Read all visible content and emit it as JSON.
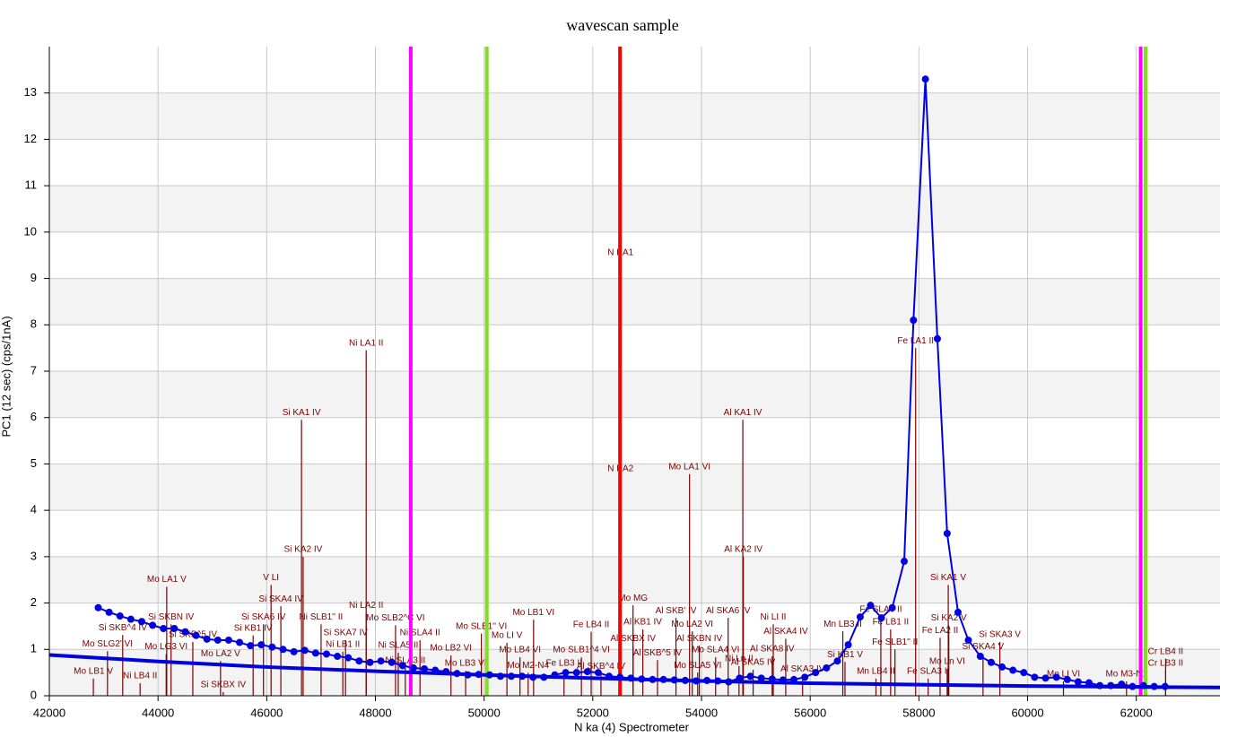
{
  "chart_data": {
    "type": "line",
    "title": "wavescan sample",
    "x_label": "N  ka (4) Spectrometer",
    "y_label": "PC1 (12 sec) (cps/1nA)",
    "xlim": [
      42000,
      63540
    ],
    "ylim": [
      0,
      14
    ],
    "xticks": [
      42000,
      44000,
      46000,
      48000,
      50000,
      52000,
      54000,
      56000,
      58000,
      60000,
      62000
    ],
    "yticks": [
      0,
      1,
      2,
      3,
      4,
      5,
      6,
      7,
      8,
      9,
      10,
      11,
      12,
      13
    ],
    "grid": true,
    "bands": true,
    "series": [
      {
        "color": "#0000e0",
        "markers": true,
        "x": [
          42900,
          43100,
          43300,
          43500,
          43700,
          43900,
          44100,
          44300,
          44500,
          44700,
          44900,
          45100,
          45300,
          45500,
          45700,
          45900,
          46100,
          46300,
          46500,
          46700,
          46900,
          47100,
          47300,
          47500,
          47700,
          47900,
          48100,
          48300,
          48500,
          48700,
          48900,
          49100,
          49300,
          49500,
          49700,
          49900,
          50100,
          50300,
          50500,
          50700,
          50900,
          51100,
          51300,
          51500,
          51700,
          51900,
          52100,
          52300,
          52500,
          52700,
          52900,
          53100,
          53300,
          53500,
          53700,
          53900,
          54100,
          54300,
          54500,
          54700,
          54900,
          55100,
          55300,
          55500,
          55700,
          55900,
          56100,
          56300,
          56500,
          56700,
          56920,
          57110,
          57310,
          57510,
          57730,
          57900,
          58120,
          58340,
          58520,
          58720,
          58910,
          59130,
          59330,
          59530,
          59730,
          59930,
          60130,
          60330,
          60530,
          60730,
          60930,
          61130,
          61330,
          61530,
          61730,
          61930,
          62130,
          62330,
          62530
        ],
        "values": [
          1.9,
          1.8,
          1.72,
          1.65,
          1.6,
          1.52,
          1.45,
          1.45,
          1.38,
          1.3,
          1.22,
          1.2,
          1.2,
          1.15,
          1.08,
          1.1,
          1.05,
          1.0,
          0.95,
          0.98,
          0.92,
          0.9,
          0.85,
          0.82,
          0.75,
          0.72,
          0.75,
          0.72,
          0.65,
          0.6,
          0.58,
          0.55,
          0.52,
          0.48,
          0.45,
          0.46,
          0.45,
          0.42,
          0.42,
          0.42,
          0.4,
          0.4,
          0.45,
          0.5,
          0.5,
          0.52,
          0.5,
          0.42,
          0.4,
          0.38,
          0.36,
          0.35,
          0.35,
          0.34,
          0.33,
          0.32,
          0.33,
          0.32,
          0.3,
          0.38,
          0.42,
          0.38,
          0.36,
          0.34,
          0.35,
          0.4,
          0.5,
          0.6,
          0.75,
          1.1,
          1.7,
          1.95,
          1.68,
          1.9,
          2.9,
          8.1,
          13.3,
          7.7,
          3.5,
          1.8,
          1.2,
          0.85,
          0.72,
          0.62,
          0.55,
          0.5,
          0.4,
          0.38,
          0.4,
          0.35,
          0.3,
          0.28,
          0.22,
          0.22,
          0.25,
          0.2,
          0.22,
          0.2,
          0.2
        ]
      },
      {
        "color": "#0000e0",
        "markers": false,
        "x": [
          42000,
          44000,
          46000,
          48000,
          50000,
          52000,
          54000,
          56000,
          58000,
          60000,
          62000,
          63540
        ],
        "values": [
          0.88,
          0.74,
          0.62,
          0.53,
          0.45,
          0.38,
          0.32,
          0.27,
          0.24,
          0.21,
          0.19,
          0.18
        ]
      }
    ],
    "markers": [
      {
        "x": 48650,
        "color": "#ff00ff"
      },
      {
        "x": 50050,
        "color": "#80e020"
      },
      {
        "x": 52500,
        "color": "#ff0000"
      },
      {
        "x": 62080,
        "color": "#ff00ff"
      },
      {
        "x": 62170,
        "color": "#80e020"
      }
    ],
    "klm_color": "#7a0000",
    "klm": [
      {
        "label": "Mo LA1 V",
        "x": 44160,
        "value": 2.35
      },
      {
        "label": "Si SKBN IV",
        "x": 44240,
        "value": 1.54
      },
      {
        "label": "Si SKB^4 IV",
        "x": 43350,
        "value": 1.31
      },
      {
        "label": "Si SKB^5 IV",
        "x": 44640,
        "value": 1.16
      },
      {
        "label": "Mo SLG2' VI",
        "x": 43070,
        "value": 0.96
      },
      {
        "label": "Mo LG3 VI",
        "x": 44150,
        "value": 0.9
      },
      {
        "label": "Si KB1 IV",
        "x": 45750,
        "value": 1.3
      },
      {
        "label": "Si SKA6 IV",
        "x": 45940,
        "value": 1.54
      },
      {
        "label": "V LI",
        "x": 46080,
        "value": 2.39
      },
      {
        "label": "Si SKA4 IV",
        "x": 46260,
        "value": 1.93
      },
      {
        "label": "Mo LB1 V",
        "x": 42810,
        "value": 0.37
      },
      {
        "label": "Ni LB4 II",
        "x": 43670,
        "value": 0.27
      },
      {
        "label": "Mo LA2 V",
        "x": 45150,
        "value": 0.75
      },
      {
        "label": "Si SKBX IV",
        "x": 45200,
        "value": 0.08
      },
      {
        "label": "Si KA1 IV",
        "x": 46640,
        "value": 5.95
      },
      {
        "label": "Si KA2 IV",
        "x": 46670,
        "value": 3.0
      },
      {
        "label": "Ni SLB1'' II",
        "x": 47000,
        "value": 1.54
      },
      {
        "label": "Si SKA7 IV",
        "x": 47450,
        "value": 1.2
      },
      {
        "label": "Ni LB1 II",
        "x": 47400,
        "value": 0.95
      },
      {
        "label": "Ni LA1 II",
        "x": 47830,
        "value": 7.45
      },
      {
        "label": "Ni LA2 II",
        "x": 47830,
        "value": 1.79
      },
      {
        "label": "Mo SLB2^C VI",
        "x": 48370,
        "value": 1.52
      },
      {
        "label": "Ni SLA4 II",
        "x": 48820,
        "value": 1.2
      },
      {
        "label": "Ni SLA5 II",
        "x": 48420,
        "value": 0.93
      },
      {
        "label": "Ni SLA3 II",
        "x": 48550,
        "value": 0.6
      },
      {
        "label": "Mo SLB1'' VI",
        "x": 49950,
        "value": 1.34
      },
      {
        "label": "Mo LB2 VI",
        "x": 49390,
        "value": 0.87
      },
      {
        "label": "Mo LB3 VI",
        "x": 49660,
        "value": 0.54
      },
      {
        "label": "Mo LI V",
        "x": 50420,
        "value": 1.14
      },
      {
        "label": "Mo LB1 VI",
        "x": 50910,
        "value": 1.64
      },
      {
        "label": "Mo LB4 VI",
        "x": 50660,
        "value": 0.83
      },
      {
        "label": "Mo M2-N4",
        "x": 50810,
        "value": 0.5
      },
      {
        "label": "Fe LB3 II",
        "x": 51470,
        "value": 0.54
      },
      {
        "label": "Fe LB4 II",
        "x": 51970,
        "value": 1.38
      },
      {
        "label": "Mo SLB1^4 VI",
        "x": 51790,
        "value": 0.83
      },
      {
        "label": "Al SKB^4 IV",
        "x": 52150,
        "value": 0.48
      },
      {
        "label": "N KA1",
        "x": 52510,
        "value": 9.4
      },
      {
        "label": "N KA2",
        "x": 52510,
        "value": 4.74
      },
      {
        "label": "Mo MG",
        "x": 52740,
        "value": 1.95
      },
      {
        "label": "Al KB1 IV",
        "x": 52920,
        "value": 1.43
      },
      {
        "label": "Al SKBX IV",
        "x": 52740,
        "value": 1.08
      },
      {
        "label": "Mo LA1 VI",
        "x": 53780,
        "value": 4.78
      },
      {
        "label": "Al SKB' IV",
        "x": 53530,
        "value": 1.68
      },
      {
        "label": "Al SKB^5 IV",
        "x": 53190,
        "value": 0.77
      },
      {
        "label": "Mo LA2 VI",
        "x": 53830,
        "value": 1.39
      },
      {
        "label": "Al SKBN IV",
        "x": 53960,
        "value": 1.08
      },
      {
        "label": "Mo SLA4 VI",
        "x": 54260,
        "value": 0.83
      },
      {
        "label": "Mo SLA5 VI",
        "x": 53930,
        "value": 0.5
      },
      {
        "label": "Al SKA6 IV",
        "x": 54490,
        "value": 1.68
      },
      {
        "label": "Al KA1 IV",
        "x": 54760,
        "value": 5.95
      },
      {
        "label": "Al KA2 IV",
        "x": 54770,
        "value": 3.0
      },
      {
        "label": "Ni Ln II",
        "x": 54690,
        "value": 0.64
      },
      {
        "label": "Al SKA8 IV",
        "x": 55300,
        "value": 0.85
      },
      {
        "label": "Al SKA5 IV",
        "x": 54950,
        "value": 0.56
      },
      {
        "label": "Ni LI II",
        "x": 55320,
        "value": 1.54
      },
      {
        "label": "Al SKA4 IV",
        "x": 55550,
        "value": 1.23
      },
      {
        "label": "Al SKA3 IV",
        "x": 55860,
        "value": 0.42
      },
      {
        "label": "Si KB1 V",
        "x": 56640,
        "value": 0.73
      },
      {
        "label": "Mn LB3 II",
        "x": 56600,
        "value": 1.39
      },
      {
        "label": "Fe SLA6 II",
        "x": 57300,
        "value": 1.7
      },
      {
        "label": "Fe LB1 II",
        "x": 57480,
        "value": 1.43
      },
      {
        "label": "Fe SLB1'' II",
        "x": 57560,
        "value": 1.0
      },
      {
        "label": "Mn LB4 II",
        "x": 57210,
        "value": 0.37
      },
      {
        "label": "Fe SLA3 II",
        "x": 58170,
        "value": 0.37
      },
      {
        "label": "Fe LA1 II",
        "x": 57940,
        "value": 7.5
      },
      {
        "label": "Si KA1 V",
        "x": 58540,
        "value": 2.39
      },
      {
        "label": "Si KA2 V",
        "x": 58550,
        "value": 1.52
      },
      {
        "label": "Fe LA2 II",
        "x": 58390,
        "value": 1.25
      },
      {
        "label": "Mo Ln VI",
        "x": 58520,
        "value": 0.58
      },
      {
        "label": "Si SKA3 V",
        "x": 59490,
        "value": 1.16
      },
      {
        "label": "Si SKA4 V",
        "x": 59180,
        "value": 0.9
      },
      {
        "label": "Mo LI VI",
        "x": 60660,
        "value": 0.31
      },
      {
        "label": "Mo M3-N1",
        "x": 61820,
        "value": 0.31
      },
      {
        "label": "Cr LB4 II",
        "x": 62540,
        "value": 0.8
      },
      {
        "label": "Cr LB3 II",
        "x": 62540,
        "value": 0.54
      }
    ]
  }
}
